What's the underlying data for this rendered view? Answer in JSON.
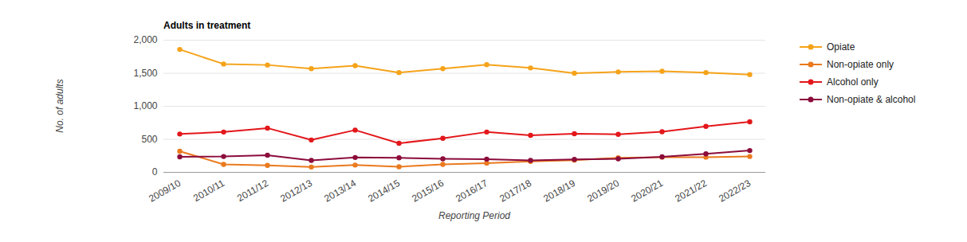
{
  "chart_data": {
    "type": "line",
    "title": "Adults in treatment",
    "x_label": "Reporting Period",
    "y_label": "No. of adults",
    "categories": [
      "2009/10",
      "2010/11",
      "2011/12",
      "2012/13",
      "2013/14",
      "2014/15",
      "2015/16",
      "2016/17",
      "2017/18",
      "2018/19",
      "2019/20",
      "2020/21",
      "2021/22",
      "2022/23"
    ],
    "series": [
      {
        "name": "Opiate",
        "color": "#f5a31a",
        "values": [
          1860,
          1640,
          1625,
          1570,
          1615,
          1510,
          1570,
          1630,
          1580,
          1500,
          1520,
          1530,
          1510,
          1480
        ]
      },
      {
        "name": "Non-opiate only",
        "color": "#ea7a1e",
        "values": [
          320,
          120,
          105,
          80,
          110,
          85,
          120,
          140,
          165,
          185,
          220,
          230,
          230,
          240
        ]
      },
      {
        "name": "Alcohol only",
        "color": "#e3171b",
        "values": [
          580,
          610,
          670,
          490,
          640,
          440,
          515,
          610,
          560,
          585,
          575,
          615,
          695,
          765
        ]
      },
      {
        "name": "Non-opiate & alcohol",
        "color": "#8c0c3c",
        "values": [
          235,
          240,
          260,
          180,
          225,
          220,
          205,
          200,
          180,
          195,
          205,
          235,
          280,
          330
        ]
      }
    ],
    "ylim": [
      0,
      2000
    ],
    "yticks": [
      0,
      500,
      {
        "value": 1000,
        "label": "1,000"
      },
      {
        "value": 1500,
        "label": "1,500"
      },
      {
        "value": 2000,
        "label": "2,000"
      }
    ],
    "grid": true,
    "legend": "right",
    "marker": "circle"
  }
}
